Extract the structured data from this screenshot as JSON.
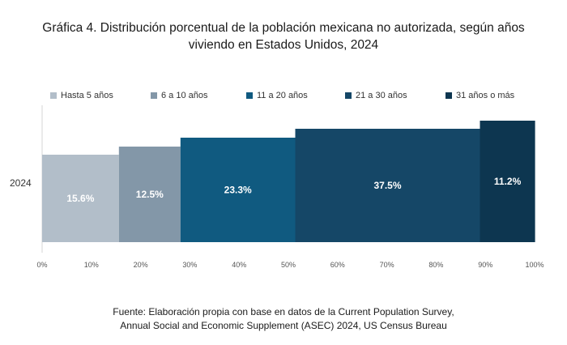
{
  "title": {
    "line1": "Gráfica 4. Distribución porcentual de la población mexicana no autorizada, según años",
    "line2": "viviendo en Estados Unidos, 2024"
  },
  "source": {
    "line1": "Fuente: Elaboración propia con base en datos de la Current Population Survey,",
    "line2": "Annual Social and Economic Supplement (ASEC) 2024, US Census Bureau"
  },
  "legend": [
    {
      "label": "Hasta 5 años",
      "color": "#b2bec9"
    },
    {
      "label": "6 a 10 años",
      "color": "#8397a8"
    },
    {
      "label": "11 a 20 años",
      "color": "#105a80"
    },
    {
      "label": "21 a 30 años",
      "color": "#154767"
    },
    {
      "label": "31 años o más",
      "color": "#0d3650"
    }
  ],
  "chart_data": {
    "type": "bar",
    "orientation": "horizontal",
    "stacked": true,
    "categories": [
      "2024"
    ],
    "series": [
      {
        "name": "Hasta 5 años",
        "values": [
          15.6
        ],
        "label": "15.6%",
        "color": "#b2bec9"
      },
      {
        "name": "6 a 10 años",
        "values": [
          12.5
        ],
        "label": "12.5%",
        "color": "#8397a8"
      },
      {
        "name": "11 a 20 años",
        "values": [
          23.3
        ],
        "label": "23.3%",
        "color": "#105a80"
      },
      {
        "name": "21 a 30 años",
        "values": [
          37.5
        ],
        "label": "37.5%",
        "color": "#154767"
      },
      {
        "name": "31 años o más",
        "values": [
          11.2
        ],
        "label": "11.2%",
        "color": "#0d3650"
      }
    ],
    "xlim": [
      0,
      100
    ],
    "xticks": [
      "0%",
      "10%",
      "20%",
      "30%",
      "40%",
      "50%",
      "60%",
      "70%",
      "80%",
      "90%",
      "100%"
    ],
    "grid": false,
    "legend_position": "top"
  }
}
